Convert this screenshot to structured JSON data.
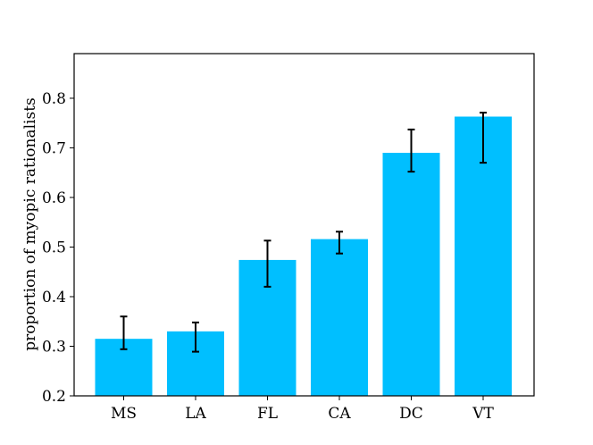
{
  "chart_data": {
    "type": "bar",
    "categories": [
      "MS",
      "LA",
      "FL",
      "CA",
      "DC",
      "VT"
    ],
    "values": [
      0.315,
      0.33,
      0.474,
      0.516,
      0.69,
      0.763
    ],
    "error_low": [
      0.294,
      0.289,
      0.42,
      0.487,
      0.652,
      0.67
    ],
    "error_high": [
      0.36,
      0.348,
      0.513,
      0.531,
      0.737,
      0.771
    ],
    "title": "",
    "xlabel": "",
    "ylabel": "proportion of myopic rationalists",
    "ylim": [
      0.2,
      0.89
    ],
    "yticks": [
      0.2,
      0.3,
      0.4,
      0.5,
      0.6,
      0.7,
      0.8
    ],
    "ytick_labels": [
      "0.2",
      "0.3",
      "0.4",
      "0.5",
      "0.6",
      "0.7",
      "0.8"
    ],
    "grid": false,
    "colors": {
      "bar": "#00bfff",
      "error": "#000000",
      "axis": "#000000"
    }
  }
}
